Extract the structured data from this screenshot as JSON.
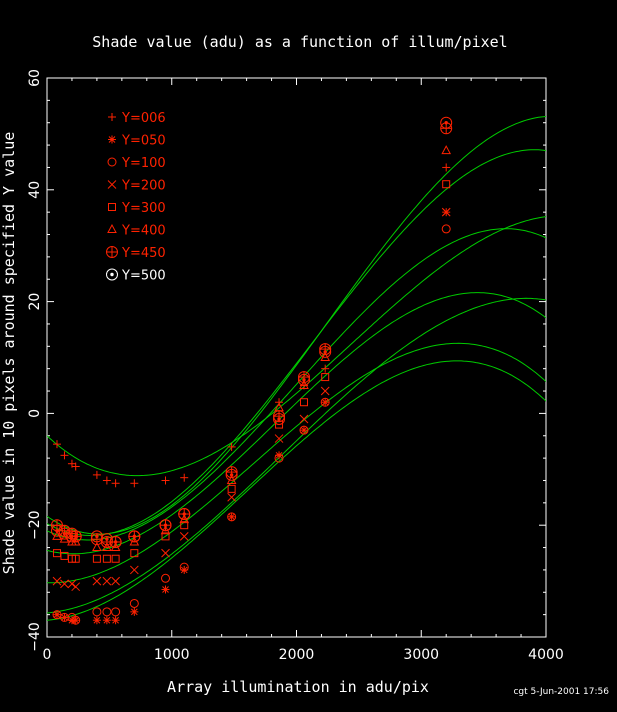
{
  "colors": {
    "background": "#000000",
    "axes": "#ffffff",
    "fit": "#00cc00",
    "marker": "#ff2200",
    "marker_last": "#ffffff"
  },
  "stamp": "cgt   5-Jun-2001 17:56",
  "chart_data": {
    "type": "scatter",
    "title": "Shade value (adu) as a function of illum/pixel",
    "xlabel": "Array illumination in adu/pix",
    "ylabel": "Shade value in 10 pixels around specified Y value",
    "xlim": [
      0,
      4000
    ],
    "ylim": [
      -40,
      60
    ],
    "xticks": [
      0,
      1000,
      2000,
      3000,
      4000
    ],
    "yticks": [
      -40,
      -20,
      0,
      20,
      40,
      60
    ],
    "grid": false,
    "legend_position": "top-left",
    "x_points": [
      80,
      140,
      200,
      230,
      400,
      480,
      550,
      700,
      950,
      1100,
      1480,
      1860,
      2060,
      2230,
      3200
    ],
    "series": [
      {
        "name": "Y=006",
        "marker": "plus",
        "values": [
          -5.5,
          -7.5,
          -9,
          -9.5,
          -11,
          -12,
          -12.5,
          -12.5,
          -12,
          -11.5,
          -6,
          2,
          5,
          8,
          44
        ],
        "fit": [
          -4,
          -0.021,
          1.71e-05,
          -2.35e-09
        ]
      },
      {
        "name": "Y=050",
        "marker": "star",
        "values": [
          -36,
          -36.5,
          -37,
          -37,
          -37,
          -37,
          -37,
          -35.5,
          -31.5,
          -28,
          -18.5,
          -7.5,
          -3,
          2,
          36
        ],
        "fit": [
          -35.7,
          0.002,
          1.04e-05,
          -1.85e-09
        ]
      },
      {
        "name": "Y=100",
        "marker": "circle",
        "values": [
          -36,
          -36.5,
          -36.5,
          -37,
          -35.5,
          -35.5,
          -35.5,
          -34,
          -29.5,
          -27.5,
          -18.5,
          -8,
          -3,
          2,
          33
        ],
        "fit": [
          -37,
          0.0018,
          1.18e-05,
          -2.45e-09
        ]
      },
      {
        "name": "Y=200",
        "marker": "cross",
        "values": [
          -30,
          -30.5,
          -30.5,
          -31,
          -30,
          -30,
          -30,
          -28,
          -25,
          -22,
          -15,
          -4.5,
          -1,
          4,
          36
        ],
        "fit": [
          -30.3,
          -0.0006,
          1.22e-05,
          -2.45e-09
        ]
      },
      {
        "name": "Y=300",
        "marker": "square",
        "values": [
          -25,
          -25.5,
          -26,
          -26,
          -26,
          -26,
          -26,
          -25,
          -22,
          -20,
          -13.5,
          -2,
          2,
          6.5,
          41
        ],
        "fit": [
          -24.5,
          -0.006,
          1.51e-05,
          -2.75e-09
        ]
      },
      {
        "name": "Y=400",
        "marker": "triangle",
        "values": [
          -22,
          -22.5,
          -23,
          -23,
          -24,
          -24,
          -24,
          -23,
          -21,
          -19,
          -12,
          1,
          5,
          10,
          47
        ],
        "fit": [
          -21,
          -0.0105,
          1.77e-05,
          -2.95e-09
        ]
      },
      {
        "name": "Y=450",
        "marker": "circle-plus",
        "values": [
          -20,
          -21,
          -21.5,
          -22,
          -22.5,
          -23,
          -23,
          -22,
          -20,
          -18,
          -10.5,
          -0.5,
          6.5,
          11.5,
          51
        ],
        "fit": [
          -18.4,
          -0.0158,
          2.09e-05,
          -3.12e-09
        ]
      },
      {
        "name": "Y=500",
        "marker": "circle-dot",
        "values": [
          -21,
          -21.5,
          -22,
          -22,
          -22,
          -22.5,
          -23,
          -22,
          -20,
          -18,
          -11,
          -1,
          6,
          11,
          52
        ],
        "fit": [
          -19.7,
          -0.0126,
          1.96e-05,
          -3.07e-09
        ]
      }
    ]
  }
}
